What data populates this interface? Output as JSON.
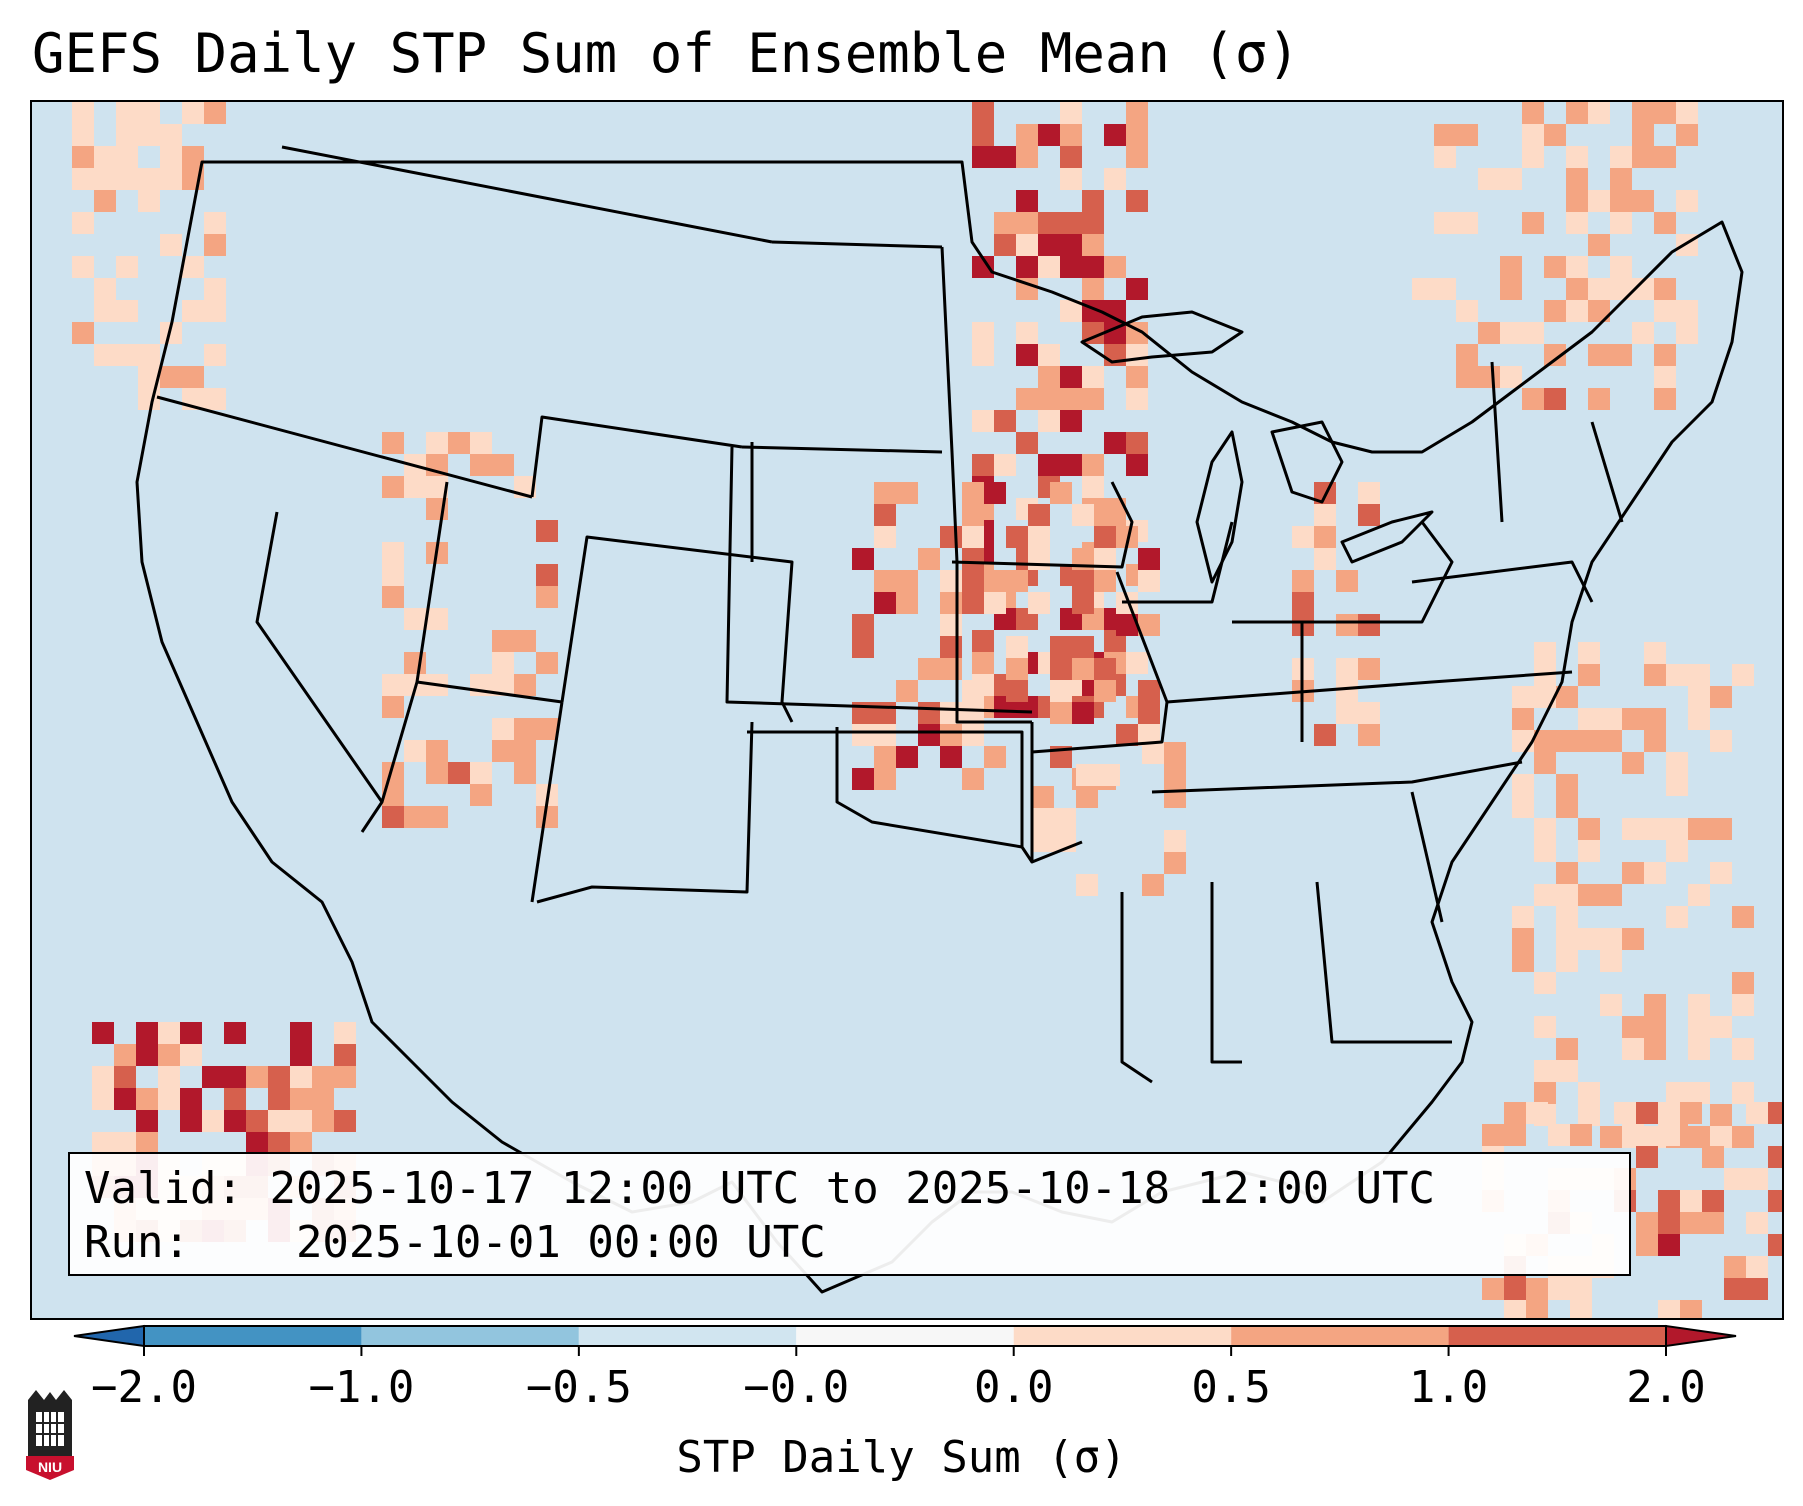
{
  "title": "GEFS Daily STP Sum of Ensemble Mean (σ)",
  "info": {
    "valid_label": "Valid:",
    "valid_value": "2025-10-17 12:00 UTC to 2025-10-18 12:00 UTC",
    "run_label": "Run:",
    "run_value": "2025-10-01 00:00 UTC"
  },
  "colorbar": {
    "label": "STP Daily Sum (σ)",
    "ticks": [
      "−2.0",
      "−1.0",
      "−0.5",
      "−0.0",
      "0.0",
      "0.5",
      "1.0",
      "2.0"
    ],
    "colors": [
      "#4393c3",
      "#92c5de",
      "#d1e5f0",
      "#f7f7f7",
      "#fddbc7",
      "#f4a582",
      "#d6604d"
    ],
    "under_color": "#2166ac",
    "over_color": "#b2182b"
  },
  "map": {
    "region": "Contiguous United States",
    "background_color": "#d1e5f0",
    "state_line_color": "#000000"
  },
  "logo": {
    "text": "NIU"
  }
}
